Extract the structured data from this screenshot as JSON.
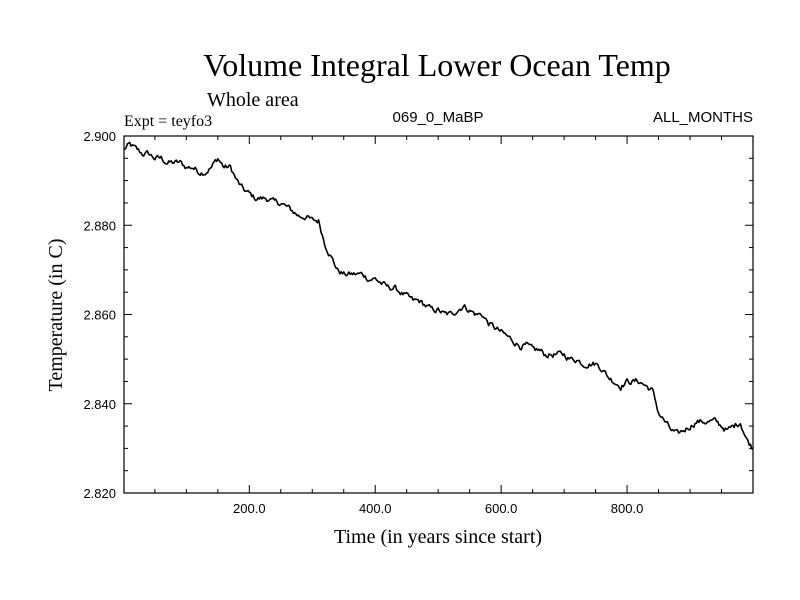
{
  "chart_data": {
    "type": "line",
    "title": "Volume Integral Lower Ocean Temp",
    "subtitle": "Whole area",
    "header_left": "Expt = teyfo3",
    "header_center": "069_0_MaBP",
    "header_right": "ALL_MONTHS",
    "xlabel": "Time (in years since start)",
    "ylabel": "Temperature (in C)",
    "xlim": [
      1,
      1000
    ],
    "ylim": [
      2.82,
      2.9
    ],
    "x_ticks": [
      200,
      400,
      600,
      800
    ],
    "x_tick_labels": [
      "200.0",
      "400.0",
      "600.0",
      "800.0"
    ],
    "y_ticks": [
      2.82,
      2.84,
      2.86,
      2.88,
      2.9
    ],
    "y_tick_labels": [
      "2.820",
      "2.840",
      "2.860",
      "2.880",
      "2.900"
    ],
    "series": [
      {
        "name": "teyfo3",
        "color": "#000000",
        "x": [
          1,
          10,
          20,
          30,
          40,
          50,
          60,
          70,
          80,
          90,
          100,
          110,
          120,
          130,
          140,
          150,
          160,
          170,
          180,
          190,
          200,
          210,
          220,
          230,
          240,
          250,
          260,
          270,
          280,
          290,
          300,
          310,
          320,
          330,
          340,
          350,
          360,
          370,
          380,
          390,
          400,
          410,
          420,
          430,
          440,
          450,
          460,
          470,
          480,
          490,
          500,
          510,
          520,
          530,
          540,
          550,
          560,
          570,
          580,
          590,
          600,
          610,
          620,
          630,
          640,
          650,
          660,
          670,
          680,
          690,
          700,
          710,
          720,
          730,
          740,
          750,
          760,
          770,
          780,
          790,
          800,
          810,
          820,
          830,
          840,
          850,
          860,
          870,
          880,
          890,
          900,
          910,
          920,
          930,
          940,
          950,
          960,
          970,
          980,
          990,
          1000
        ],
        "values": [
          2.897,
          2.898,
          2.897,
          2.896,
          2.896,
          2.895,
          2.895,
          2.894,
          2.894,
          2.894,
          2.893,
          2.893,
          2.892,
          2.892,
          2.893,
          2.895,
          2.893,
          2.893,
          2.89,
          2.888,
          2.887,
          2.886,
          2.886,
          2.886,
          2.885,
          2.885,
          2.884,
          2.883,
          2.882,
          2.882,
          2.881,
          2.881,
          2.876,
          2.873,
          2.87,
          2.869,
          2.869,
          2.869,
          2.869,
          2.868,
          2.868,
          2.867,
          2.866,
          2.866,
          2.865,
          2.864,
          2.863,
          2.863,
          2.862,
          2.861,
          2.861,
          2.86,
          2.86,
          2.861,
          2.862,
          2.861,
          2.86,
          2.86,
          2.858,
          2.857,
          2.856,
          2.855,
          2.854,
          2.853,
          2.853,
          2.852,
          2.852,
          2.851,
          2.851,
          2.851,
          2.851,
          2.85,
          2.85,
          2.849,
          2.849,
          2.849,
          2.848,
          2.846,
          2.845,
          2.844,
          2.845,
          2.845,
          2.845,
          2.844,
          2.843,
          2.838,
          2.836,
          2.834,
          2.833,
          2.834,
          2.835,
          2.836,
          2.836,
          2.836,
          2.836,
          2.835,
          2.834,
          2.835,
          2.836,
          2.832,
          2.83
        ]
      }
    ]
  }
}
